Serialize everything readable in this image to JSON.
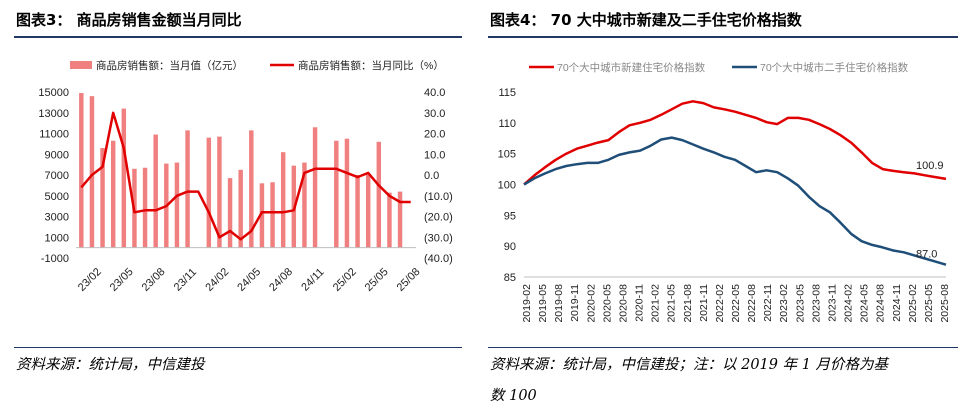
{
  "left_panel": {
    "title": "图表3：  商品房销售金额当月同比",
    "source": "资料来源：统计局，中信建投"
  },
  "right_panel": {
    "title": "图表4：  70 大中城市新建及二手住宅价格指数",
    "source_line1": "资料来源：统计局，中信建投；注：以 2019 年 1 月价格为基",
    "source_line2": "数 100"
  },
  "colors": {
    "bar": "#f08080",
    "line_red": "#e00000",
    "line_navy": "#1f4e79",
    "rule": "#1f3864"
  },
  "chart_data": [
    {
      "type": "bar+line",
      "legend": [
        "商品房销售额：当月值（亿元）",
        "商品房销售额：当月同比（%）"
      ],
      "legend_position": "top",
      "x_tick_labels": [
        "23/02",
        "23/05",
        "23/08",
        "23/11",
        "24/02",
        "24/05",
        "24/08",
        "24/11",
        "25/02",
        "25/05",
        "25/08"
      ],
      "y_left_ticks": [
        "15000",
        "13000",
        "11000",
        "9000",
        "7000",
        "5000",
        "3000",
        "1000",
        "-1000"
      ],
      "y_right_ticks": [
        "40.0",
        "30.0",
        "20.0",
        "10.0",
        "0.0",
        "(10.0)",
        "(20.0)",
        "(30.0)",
        "(40.0)"
      ],
      "y_left_range": [
        -1000,
        15000
      ],
      "y_right_range": [
        -40,
        40
      ],
      "categories": [
        "23/01",
        "23/02",
        "23/03",
        "23/04",
        "23/05",
        "23/06",
        "23/07",
        "23/08",
        "23/09",
        "23/10",
        "23/11",
        "23/12",
        "24/01",
        "24/02",
        "24/03",
        "24/04",
        "24/05",
        "24/06",
        "24/07",
        "24/08",
        "24/09",
        "24/10",
        "24/11",
        "24/12",
        "25/01",
        "25/02",
        "25/03",
        "25/04",
        "25/05",
        "25/06",
        "25/07",
        "25/08"
      ],
      "bar_values": [
        14900,
        14600,
        9600,
        10300,
        13400,
        7600,
        7700,
        10900,
        8100,
        8200,
        11300,
        null,
        10600,
        10700,
        6700,
        7500,
        11300,
        6200,
        6300,
        9200,
        7900,
        8200,
        11600,
        null,
        10300,
        10500,
        7000,
        7100,
        10200,
        5300,
        5400,
        null
      ],
      "line_values": [
        -6,
        0,
        4,
        30,
        13,
        -18,
        -17,
        -17,
        -15,
        -10,
        -8,
        -8,
        -18,
        -30,
        -27,
        -31,
        -27,
        -18,
        -18,
        -18,
        -17,
        1,
        3,
        3,
        3,
        1,
        -1,
        1,
        -5,
        -10,
        -13,
        -13
      ]
    },
    {
      "type": "line",
      "legend": [
        "70个大中城市新建住宅价格指数",
        "70个大中城市二手住宅价格指数"
      ],
      "legend_position": "top",
      "y_ticks": [
        "115",
        "110",
        "105",
        "100",
        "95",
        "90",
        "85"
      ],
      "y_range": [
        85,
        115
      ],
      "x_tick_labels": [
        "2019-02",
        "2019-05",
        "2019-08",
        "2019-11",
        "2020-02",
        "2020-05",
        "2020-08",
        "2020-11",
        "2021-02",
        "2021-05",
        "2021-08",
        "2021-11",
        "2022-02",
        "2022-05",
        "2022-08",
        "2022-11",
        "2023-02",
        "2023-05",
        "2023-08",
        "2023-11",
        "2024-02",
        "2024-05",
        "2024-08",
        "2024-11",
        "2025-02",
        "2025-05",
        "2025-08"
      ],
      "series": [
        {
          "name": "70个大中城市新建住宅价格指数",
          "values": [
            100,
            101.5,
            102.8,
            104,
            105,
            105.8,
            106.3,
            106.8,
            107.2,
            108.5,
            109.6,
            110,
            110.5,
            111.3,
            112.2,
            113.1,
            113.5,
            113.2,
            112.5,
            112.2,
            111.8,
            111.3,
            110.8,
            110.1,
            109.8,
            110.8,
            110.8,
            110.5,
            109.8,
            109,
            108,
            106.8,
            105.2,
            103.5,
            102.5,
            102.2,
            102,
            101.8,
            101.5,
            101.2,
            100.9
          ],
          "end_label": "100.9"
        },
        {
          "name": "70个大中城市二手住宅价格指数",
          "values": [
            100,
            101,
            101.8,
            102.5,
            103,
            103.3,
            103.5,
            103.5,
            104,
            104.8,
            105.2,
            105.5,
            106.3,
            107.3,
            107.6,
            107.2,
            106.5,
            105.8,
            105.2,
            104.5,
            104,
            103,
            102,
            102.3,
            102,
            101,
            99.8,
            98,
            96.5,
            95.5,
            93.8,
            92,
            90.8,
            90.2,
            89.8,
            89.3,
            89,
            88.5,
            88,
            87.5,
            87.0
          ],
          "end_label": "87.0"
        }
      ]
    }
  ]
}
